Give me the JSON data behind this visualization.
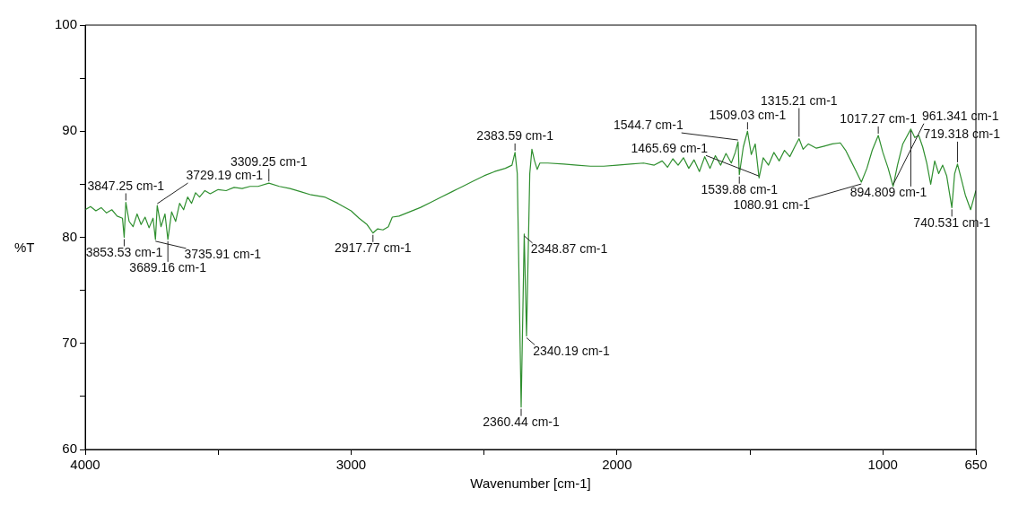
{
  "chart_data": {
    "type": "line",
    "xlabel": "Wavenumber [cm-1]",
    "ylabel": "%T",
    "color": "#2f8f2f",
    "marker": "none",
    "xlim": [
      4000,
      650
    ],
    "ylim": [
      60,
      100
    ],
    "xticks": [
      4000,
      {
        "value": 3500,
        "label": null
      },
      3000,
      {
        "value": 2500,
        "label": null
      },
      2000,
      {
        "value": 1500,
        "label": null
      },
      1000,
      650
    ],
    "yticks": [
      60,
      {
        "value": 65,
        "label": null
      },
      70,
      {
        "value": 75,
        "label": null
      },
      80,
      {
        "value": 85,
        "label": null
      },
      90,
      {
        "value": 95,
        "label": null
      },
      100
    ],
    "x": [
      4000,
      3980,
      3960,
      3940,
      3920,
      3900,
      3880,
      3860,
      3853.53,
      3847.25,
      3835,
      3820,
      3805,
      3790,
      3775,
      3760,
      3745,
      3735.91,
      3729.19,
      3715,
      3700,
      3689.16,
      3675,
      3660,
      3645,
      3630,
      3615,
      3600,
      3585,
      3570,
      3550,
      3530,
      3500,
      3470,
      3440,
      3410,
      3380,
      3350,
      3309.25,
      3270,
      3230,
      3190,
      3150,
      3100,
      3050,
      3000,
      2970,
      2940,
      2917.77,
      2900,
      2880,
      2860,
      2845,
      2820,
      2780,
      2740,
      2700,
      2660,
      2620,
      2580,
      2540,
      2500,
      2460,
      2420,
      2395,
      2383.59,
      2375,
      2360.44,
      2348.87,
      2340.19,
      2328,
      2320,
      2310,
      2300,
      2290,
      2260,
      2200,
      2150,
      2100,
      2050,
      2000,
      1950,
      1900,
      1860,
      1830,
      1810,
      1790,
      1770,
      1750,
      1730,
      1710,
      1690,
      1670,
      1650,
      1630,
      1610,
      1590,
      1570,
      1555,
      1544.7,
      1539.88,
      1525,
      1509.03,
      1495,
      1480,
      1465.69,
      1450,
      1430,
      1410,
      1390,
      1370,
      1350,
      1330,
      1315.21,
      1300,
      1280,
      1250,
      1220,
      1190,
      1160,
      1140,
      1120,
      1100,
      1080.91,
      1060,
      1040,
      1017.27,
      1000,
      980,
      961.341,
      945,
      925,
      910,
      894.809,
      880,
      865,
      850,
      835,
      820,
      805,
      790,
      775,
      760,
      740.531,
      730,
      719.318,
      705,
      690,
      670,
      660,
      650
    ],
    "values": [
      82.6,
      82.9,
      82.5,
      82.8,
      82.3,
      82.6,
      82.0,
      81.8,
      80.0,
      83.3,
      81.5,
      81.0,
      82.2,
      81.2,
      81.9,
      80.9,
      81.8,
      79.8,
      83.0,
      81.0,
      82.2,
      79.8,
      82.4,
      81.5,
      83.2,
      82.6,
      83.8,
      83.2,
      84.2,
      83.8,
      84.4,
      84.1,
      84.5,
      84.4,
      84.7,
      84.6,
      84.8,
      84.8,
      85.1,
      84.8,
      84.6,
      84.3,
      84.0,
      83.8,
      83.2,
      82.5,
      81.8,
      81.2,
      80.4,
      80.8,
      80.7,
      81.0,
      81.9,
      82.0,
      82.4,
      82.8,
      83.3,
      83.8,
      84.3,
      84.8,
      85.3,
      85.8,
      86.2,
      86.5,
      86.8,
      88.0,
      86.0,
      64.0,
      80.3,
      70.7,
      86.0,
      88.3,
      87.2,
      86.4,
      87.0,
      87.0,
      86.9,
      86.8,
      86.7,
      86.7,
      86.8,
      86.9,
      87.0,
      86.8,
      87.2,
      86.6,
      87.4,
      86.8,
      87.5,
      86.5,
      87.3,
      86.2,
      87.6,
      86.5,
      87.7,
      86.8,
      87.9,
      87.0,
      88.0,
      89.0,
      85.9,
      88.5,
      90.0,
      87.8,
      88.8,
      85.6,
      87.5,
      86.8,
      88.0,
      87.2,
      88.2,
      87.6,
      88.6,
      89.3,
      88.3,
      88.8,
      88.4,
      88.6,
      88.8,
      88.9,
      88.2,
      87.2,
      86.2,
      85.2,
      86.5,
      88.2,
      89.6,
      88.0,
      86.5,
      84.8,
      86.8,
      88.8,
      89.5,
      90.2,
      89.4,
      89.6,
      88.5,
      87.0,
      85.0,
      87.2,
      86.0,
      86.8,
      85.8,
      82.8,
      86.0,
      86.9,
      85.5,
      84.0,
      82.6,
      83.5,
      84.4
    ],
    "annotations": [
      {
        "text": "3847.25 cm-1",
        "x": 3847.25,
        "y": 83.3
      },
      {
        "text": "3729.19 cm-1",
        "x": 3729.19,
        "y": 83.0
      },
      {
        "text": "3853.53 cm-1",
        "x": 3853.53,
        "y": 80.0
      },
      {
        "text": "3735.91 cm-1",
        "x": 3735.91,
        "y": 79.8
      },
      {
        "text": "3689.16 cm-1",
        "x": 3689.16,
        "y": 79.8
      },
      {
        "text": "3309.25 cm-1",
        "x": 3309.25,
        "y": 85.1
      },
      {
        "text": "2917.77 cm-1",
        "x": 2917.77,
        "y": 80.4
      },
      {
        "text": "2383.59 cm-1",
        "x": 2383.59,
        "y": 88.0
      },
      {
        "text": "2348.87 cm-1",
        "x": 2348.87,
        "y": 80.3
      },
      {
        "text": "2340.19 cm-1",
        "x": 2340.19,
        "y": 70.7
      },
      {
        "text": "2360.44 cm-1",
        "x": 2360.44,
        "y": 64.0
      },
      {
        "text": "1509.03 cm-1",
        "x": 1509.03,
        "y": 90.0
      },
      {
        "text": "1544.7 cm-1",
        "x": 1544.7,
        "y": 89.0
      },
      {
        "text": "1315.21 cm-1",
        "x": 1315.21,
        "y": 89.3
      },
      {
        "text": "1017.27 cm-1",
        "x": 1017.27,
        "y": 89.6
      },
      {
        "text": "894.809 cm-1",
        "x": 894.809,
        "y": 90.2
      },
      {
        "text": "719.318 cm-1",
        "x": 719.318,
        "y": 86.9
      },
      {
        "text": "1539.88 cm-1",
        "x": 1539.88,
        "y": 85.9
      },
      {
        "text": "1465.69 cm-1",
        "x": 1465.69,
        "y": 85.6
      },
      {
        "text": "1080.91 cm-1",
        "x": 1080.91,
        "y": 85.2
      },
      {
        "text": "961.341 cm-1",
        "x": 961.341,
        "y": 84.8
      },
      {
        "text": "740.531 cm-1",
        "x": 740.531,
        "y": 82.8
      }
    ]
  }
}
